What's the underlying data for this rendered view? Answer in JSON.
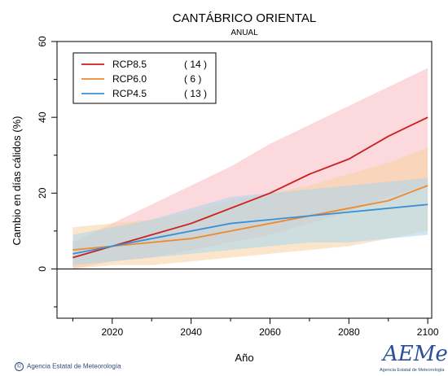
{
  "colors": {
    "rcp85_line": "#cc1f1f",
    "rcp85_band": "#f7b9bf",
    "rcp60_line": "#ef8a2c",
    "rcp60_band": "#f7d2a0",
    "rcp45_line": "#3a8fd8",
    "rcp45_band": "#a9d6ef"
  },
  "footer": {
    "credit": "Agencia Estatal de Meteorología",
    "logo_text": "AEMet",
    "logo_subtext": "Agencia Estatal de Meteorología"
  },
  "chart_data": {
    "type": "line",
    "title": "CANTÁBRICO ORIENTAL",
    "subtitle": "ANUAL",
    "xlabel": "Año",
    "ylabel": "Cambio en días cálidos (%)",
    "xlim": [
      2006,
      2101
    ],
    "ylim": [
      -13,
      60
    ],
    "x_ticks": [
      2020,
      2040,
      2060,
      2080,
      2100
    ],
    "y_ticks": [
      0,
      20,
      40,
      60
    ],
    "zero_line": 0,
    "legend_position": "top-left",
    "series": [
      {
        "name": "RCP8.5",
        "count_label": "( 14 )",
        "color_key": "rcp85",
        "x": [
          2010,
          2020,
          2030,
          2040,
          2050,
          2060,
          2070,
          2080,
          2090,
          2100
        ],
        "y": [
          3,
          6,
          9,
          12,
          16,
          20,
          25,
          29,
          35,
          40
        ],
        "lower": [
          0,
          2,
          3,
          5,
          7,
          9,
          12,
          15,
          19,
          22
        ],
        "upper": [
          7,
          12,
          17,
          22,
          27,
          33,
          38,
          43,
          48,
          53
        ]
      },
      {
        "name": "RCP6.0",
        "count_label": "(  6 )",
        "color_key": "rcp60",
        "x": [
          2010,
          2020,
          2030,
          2040,
          2050,
          2060,
          2070,
          2080,
          2090,
          2100
        ],
        "y": [
          5,
          6,
          7,
          8,
          10,
          12,
          14,
          16,
          18,
          22
        ],
        "lower": [
          0,
          1,
          1,
          2,
          3,
          4,
          5,
          6,
          8,
          10
        ],
        "upper": [
          11,
          12,
          13,
          15,
          18,
          20,
          22,
          25,
          28,
          32
        ]
      },
      {
        "name": "RCP4.5",
        "count_label": "( 13 )",
        "color_key": "rcp45",
        "x": [
          2010,
          2020,
          2030,
          2040,
          2050,
          2060,
          2070,
          2080,
          2090,
          2100
        ],
        "y": [
          4,
          6,
          8,
          10,
          12,
          13,
          14,
          15,
          16,
          17
        ],
        "lower": [
          1,
          2,
          3,
          4,
          5,
          6,
          7,
          7,
          8,
          9
        ],
        "upper": [
          9,
          11,
          13,
          16,
          19,
          20,
          21,
          22,
          23,
          24
        ]
      }
    ]
  }
}
